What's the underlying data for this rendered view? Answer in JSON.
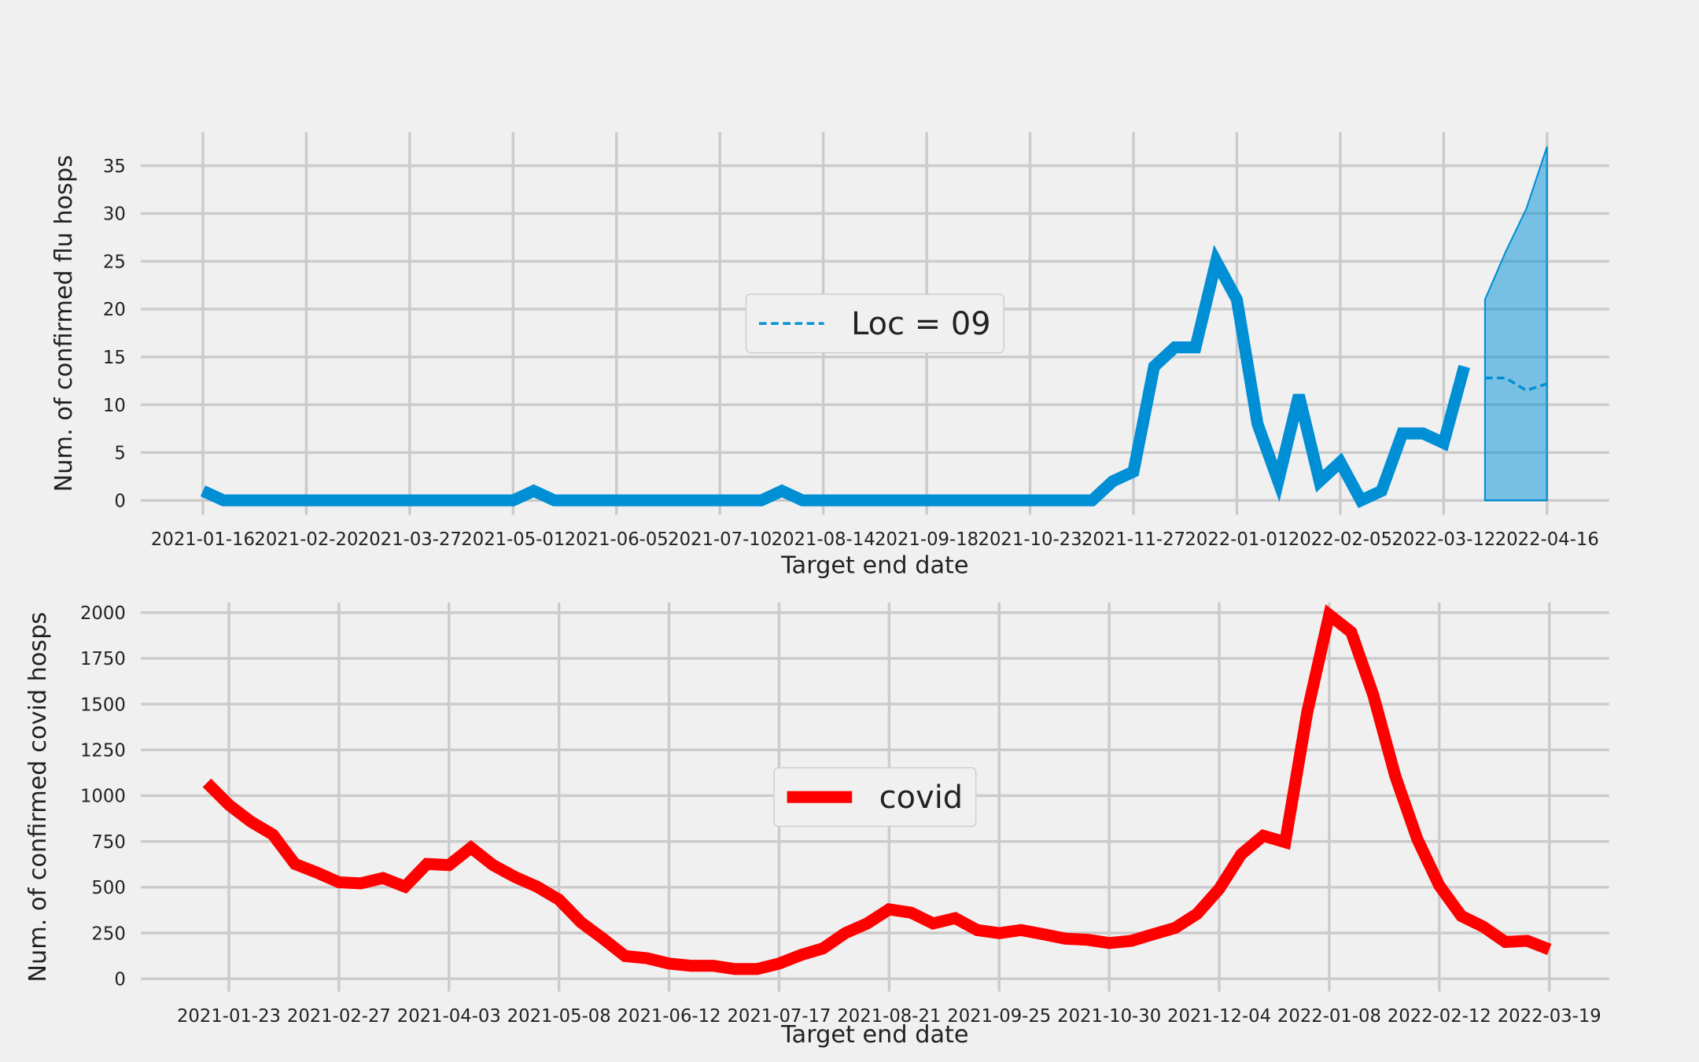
{
  "chart_data": [
    {
      "type": "line",
      "xlabel": "Target end date",
      "ylabel": "Num. of confirmed flu hosps",
      "xlim": [
        "2020-12-26",
        "2022-05-07"
      ],
      "ylim": [
        -1.5,
        38.5
      ],
      "xticks": [
        "2021-01-16",
        "2021-02-20",
        "2021-03-27",
        "2021-05-01",
        "2021-06-05",
        "2021-07-10",
        "2021-08-14",
        "2021-09-18",
        "2021-10-23",
        "2021-11-27",
        "2022-01-01",
        "2022-02-05",
        "2022-03-12",
        "2022-04-16"
      ],
      "yticks": [
        0,
        5,
        10,
        15,
        20,
        25,
        30,
        35
      ],
      "grid": true,
      "legend": "center",
      "series": [
        {
          "color": "#008fd5",
          "x": [
            "2021-01-16",
            "2021-01-23",
            "2021-01-30",
            "2021-02-06",
            "2021-02-13",
            "2021-02-20",
            "2021-02-27",
            "2021-03-06",
            "2021-03-13",
            "2021-03-20",
            "2021-03-27",
            "2021-04-03",
            "2021-04-10",
            "2021-04-17",
            "2021-04-24",
            "2021-05-01",
            "2021-05-08",
            "2021-05-15",
            "2021-05-22",
            "2021-05-29",
            "2021-06-05",
            "2021-06-12",
            "2021-06-19",
            "2021-06-26",
            "2021-07-03",
            "2021-07-10",
            "2021-07-17",
            "2021-07-24",
            "2021-07-31",
            "2021-08-07",
            "2021-08-14",
            "2021-08-21",
            "2021-08-28",
            "2021-09-04",
            "2021-09-11",
            "2021-09-18",
            "2021-09-25",
            "2021-10-02",
            "2021-10-09",
            "2021-10-16",
            "2021-10-23",
            "2021-10-30",
            "2021-11-06",
            "2021-11-13",
            "2021-11-20",
            "2021-11-27",
            "2021-12-04",
            "2021-12-11",
            "2021-12-18",
            "2021-12-25",
            "2022-01-01",
            "2022-01-08",
            "2022-01-15",
            "2022-01-22",
            "2022-01-29",
            "2022-02-05",
            "2022-02-12",
            "2022-02-19",
            "2022-02-26",
            "2022-03-05",
            "2022-03-12",
            "2022-03-19"
          ],
          "values": [
            1,
            0,
            0,
            0,
            0,
            0,
            0,
            0,
            0,
            0,
            0,
            0,
            0,
            0,
            0,
            0,
            1,
            0,
            0,
            0,
            0,
            0,
            0,
            0,
            0,
            0,
            0,
            0,
            1,
            0,
            0,
            0,
            0,
            0,
            0,
            0,
            0,
            0,
            0,
            0,
            0,
            0,
            0,
            0,
            2,
            3,
            14,
            16,
            16,
            25,
            21,
            8,
            2,
            11,
            2,
            4,
            0,
            1,
            7,
            7,
            6,
            14
          ]
        },
        {
          "name": "Loc = 09",
          "color": "#008fd5",
          "linestyle": "dashed",
          "band_color": "#008fd5",
          "x": [
            "2022-03-26",
            "2022-04-02",
            "2022-04-09",
            "2022-04-16"
          ],
          "values": [
            12.8,
            12.8,
            11.5,
            12.2
          ],
          "lower": [
            0,
            0,
            0,
            0
          ],
          "upper": [
            21,
            26,
            30.5,
            37
          ]
        }
      ]
    },
    {
      "type": "line",
      "xlabel": "Target end date",
      "ylabel": "Num. of confirmed covid hosps",
      "xlim": [
        "2020-12-26",
        "2022-04-07"
      ],
      "ylim": [
        -70,
        2055
      ],
      "xticks": [
        "2021-01-23",
        "2021-02-27",
        "2021-04-03",
        "2021-05-08",
        "2021-06-12",
        "2021-07-17",
        "2021-08-21",
        "2021-09-25",
        "2021-10-30",
        "2021-12-04",
        "2022-01-08",
        "2022-02-12",
        "2022-03-19"
      ],
      "yticks": [
        0,
        250,
        500,
        750,
        1000,
        1250,
        1500,
        1750,
        2000
      ],
      "grid": true,
      "legend": "center",
      "series": [
        {
          "name": "covid",
          "color": "#ff0000",
          "x": [
            "2021-01-16",
            "2021-01-23",
            "2021-01-30",
            "2021-02-06",
            "2021-02-13",
            "2021-02-20",
            "2021-02-27",
            "2021-03-06",
            "2021-03-13",
            "2021-03-20",
            "2021-03-27",
            "2021-04-03",
            "2021-04-10",
            "2021-04-17",
            "2021-04-24",
            "2021-05-01",
            "2021-05-08",
            "2021-05-15",
            "2021-05-22",
            "2021-05-29",
            "2021-06-05",
            "2021-06-12",
            "2021-06-19",
            "2021-06-26",
            "2021-07-03",
            "2021-07-10",
            "2021-07-17",
            "2021-07-24",
            "2021-07-31",
            "2021-08-07",
            "2021-08-14",
            "2021-08-21",
            "2021-08-28",
            "2021-09-04",
            "2021-09-11",
            "2021-09-18",
            "2021-09-25",
            "2021-10-02",
            "2021-10-09",
            "2021-10-16",
            "2021-10-23",
            "2021-10-30",
            "2021-11-06",
            "2021-11-13",
            "2021-11-20",
            "2021-11-27",
            "2021-12-04",
            "2021-12-11",
            "2021-12-18",
            "2021-12-25",
            "2022-01-01",
            "2022-01-08",
            "2022-01-15",
            "2022-01-22",
            "2022-01-29",
            "2022-02-05",
            "2022-02-12",
            "2022-02-19",
            "2022-02-26",
            "2022-03-05",
            "2022-03-12",
            "2022-03-19"
          ],
          "values": [
            1070,
            950,
            858,
            787,
            627,
            580,
            527,
            521,
            550,
            503,
            627,
            621,
            716,
            621,
            556,
            503,
            432,
            308,
            219,
            124,
            112,
            83,
            71,
            71,
            53,
            53,
            83,
            130,
            166,
            249,
            302,
            379,
            361,
            302,
            331,
            266,
            249,
            266,
            243,
            219,
            213,
            195,
            207,
            243,
            278,
            355,
            491,
            680,
            781,
            746,
            1456,
            1988,
            1893,
            1550,
            1107,
            763,
            509,
            343,
            284,
            201,
            207,
            160
          ]
        }
      ]
    }
  ]
}
